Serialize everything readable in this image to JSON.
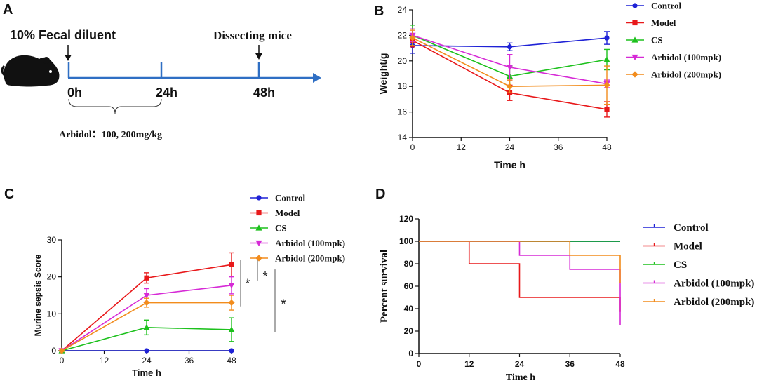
{
  "panels": {
    "a": "A",
    "b": "B",
    "c": "C",
    "d": "D"
  },
  "colors": {
    "control": "#1f22d6",
    "model": "#e8181a",
    "cs": "#1dc11d",
    "arb100": "#d62ad6",
    "arb200": "#f28c1c",
    "timeline": "#2f6fc4"
  },
  "timeline": {
    "fecal_label": "10% Fecal diluent",
    "dissect_label": "Dissecting mice",
    "times": [
      "0h",
      "24h",
      "48h"
    ],
    "arbidol_note": "Arbidol：100, 200mg/kg"
  },
  "chart_data": [
    {
      "id": "B",
      "type": "line",
      "xlabel": "Time h",
      "ylabel": "Weight/g",
      "x": [
        0,
        24,
        48
      ],
      "xticks": [
        0,
        12,
        24,
        36,
        48
      ],
      "xlim": [
        0,
        48
      ],
      "ylim": [
        14,
        24
      ],
      "yticks": [
        14,
        16,
        18,
        20,
        22,
        24
      ],
      "legend": "right",
      "series": [
        {
          "name": "Control",
          "key": "control",
          "marker": "circle",
          "values": [
            21.2,
            21.1,
            21.8
          ],
          "err": [
            0.6,
            0.3,
            0.5
          ]
        },
        {
          "name": "Model",
          "key": "model",
          "marker": "square",
          "values": [
            21.6,
            17.5,
            16.2
          ],
          "err": [
            0.5,
            0.6,
            0.6
          ]
        },
        {
          "name": "CS",
          "key": "cs",
          "marker": "triangle",
          "values": [
            22.0,
            18.8,
            20.1
          ],
          "err": [
            0.8,
            0.8,
            0.8
          ]
        },
        {
          "name": "Arbidol (100mpk)",
          "key": "arb100",
          "marker": "triangle-down",
          "values": [
            22.0,
            19.5,
            18.2
          ],
          "err": [
            0.5,
            1.0,
            0.3
          ]
        },
        {
          "name": "Arbidol (200mpk)",
          "key": "arb200",
          "marker": "diamond",
          "values": [
            21.8,
            18.0,
            18.1
          ],
          "err": [
            0.6,
            0.5,
            1.5
          ]
        }
      ]
    },
    {
      "id": "C",
      "type": "line",
      "xlabel": "Time h",
      "ylabel": "Murine sepsis Score",
      "x": [
        0,
        24,
        48
      ],
      "xticks": [
        0,
        12,
        24,
        36,
        48
      ],
      "xlim": [
        0,
        48
      ],
      "ylim": [
        0,
        30
      ],
      "yticks": [
        0,
        10,
        20,
        30
      ],
      "legend": "right",
      "significance": [
        "*",
        "*",
        "*"
      ],
      "series": [
        {
          "name": "Control",
          "key": "control",
          "marker": "circle",
          "values": [
            0,
            0,
            0
          ],
          "err": [
            0,
            0,
            0
          ]
        },
        {
          "name": "Model",
          "key": "model",
          "marker": "square",
          "values": [
            0,
            19.7,
            23.3
          ],
          "err": [
            0,
            1.4,
            3.2
          ]
        },
        {
          "name": "CS",
          "key": "cs",
          "marker": "triangle",
          "values": [
            0,
            6.3,
            5.7
          ],
          "err": [
            0,
            2.0,
            3.2
          ]
        },
        {
          "name": "Arbidol (100mpk)",
          "key": "arb100",
          "marker": "triangle-down",
          "values": [
            0,
            15.0,
            17.7
          ],
          "err": [
            0,
            1.8,
            2.3
          ]
        },
        {
          "name": "Arbidol (200mpk)",
          "key": "arb200",
          "marker": "diamond",
          "values": [
            0,
            13.0,
            13.0
          ],
          "err": [
            0,
            1.2,
            2.0
          ]
        }
      ]
    },
    {
      "id": "D",
      "type": "line",
      "subtype": "kaplan-meier",
      "xlabel": "Time h",
      "ylabel": "Percent survival",
      "xticks": [
        0,
        12,
        24,
        36,
        48
      ],
      "xlim": [
        0,
        48
      ],
      "ylim": [
        0,
        120
      ],
      "yticks": [
        0,
        20,
        40,
        60,
        80,
        100,
        120
      ],
      "legend": "right",
      "series": [
        {
          "name": "Control",
          "key": "control",
          "steps": [
            [
              0,
              100
            ],
            [
              48,
              100
            ]
          ]
        },
        {
          "name": "Model",
          "key": "model",
          "steps": [
            [
              0,
              100
            ],
            [
              12,
              80
            ],
            [
              24,
              50
            ],
            [
              48,
              50
            ],
            [
              48,
              37
            ]
          ]
        },
        {
          "name": "CS",
          "key": "cs",
          "steps": [
            [
              0,
              100
            ],
            [
              48,
              100
            ]
          ]
        },
        {
          "name": "Arbidol (100mpk)",
          "key": "arb100",
          "steps": [
            [
              0,
              100
            ],
            [
              24,
              87.5
            ],
            [
              36,
              75
            ],
            [
              48,
              75
            ],
            [
              48,
              25
            ]
          ]
        },
        {
          "name": "Arbidol (200mpk)",
          "key": "arb200",
          "steps": [
            [
              0,
              100
            ],
            [
              36,
              87.5
            ],
            [
              48,
              87.5
            ],
            [
              48,
              62.5
            ]
          ]
        }
      ]
    }
  ]
}
